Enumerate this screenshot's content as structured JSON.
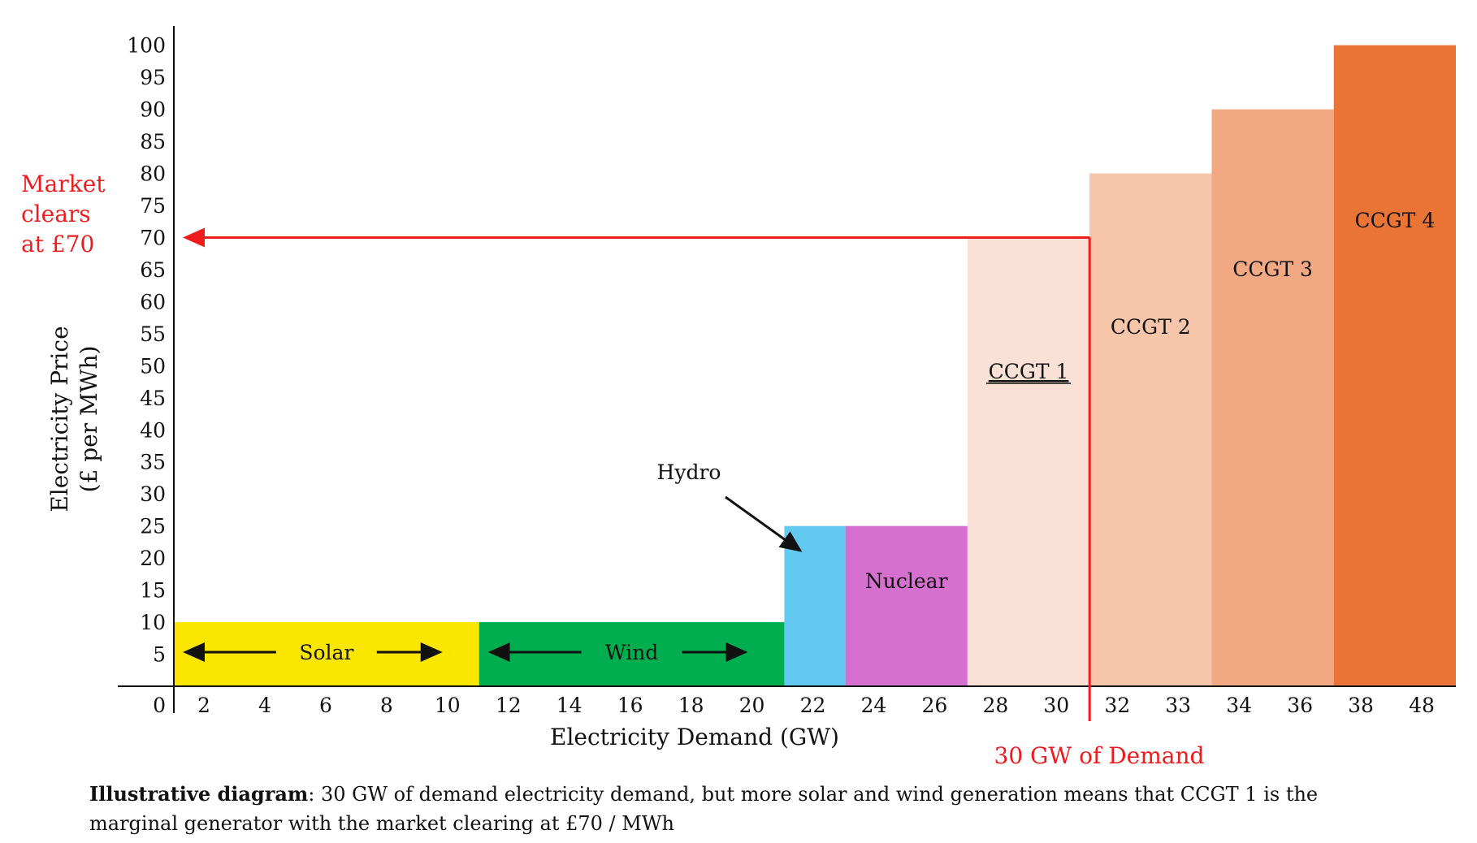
{
  "chart_data": {
    "type": "bar",
    "xlabel": "Electricity Demand (GW)",
    "ylabel_lines": [
      "Electricity Price",
      "(£ per MWh)"
    ],
    "ylim": [
      0,
      103
    ],
    "y_ticks": [
      5,
      10,
      15,
      20,
      25,
      30,
      35,
      40,
      45,
      50,
      55,
      60,
      65,
      70,
      75,
      80,
      85,
      90,
      95,
      100
    ],
    "y_zero_label": "0",
    "x_tick_labels": [
      "2",
      "4",
      "6",
      "8",
      "10",
      "12",
      "14",
      "16",
      "18",
      "20",
      "22",
      "24",
      "26",
      "28",
      "30",
      "32",
      "33",
      "34",
      "36",
      "38",
      "48"
    ],
    "bars": [
      {
        "name": "Solar",
        "start_gw": 0,
        "end_gw": 10,
        "price": 10,
        "color": "#fbe600",
        "label_style": "arrows"
      },
      {
        "name": "Wind",
        "start_gw": 10,
        "end_gw": 20,
        "price": 10,
        "color": "#00ae4f",
        "label_style": "arrows"
      },
      {
        "name": "Hydro",
        "start_gw": 20,
        "end_gw": 22,
        "price": 25,
        "color": "#62c9f1",
        "label_style": "callout"
      },
      {
        "name": "Nuclear",
        "start_gw": 22,
        "end_gw": 26,
        "price": 25,
        "color": "#d670cf",
        "label_style": "inside"
      },
      {
        "name": "CCGT 1",
        "start_gw": 26,
        "end_gw": 30,
        "price": 70,
        "color": "#fae0d5",
        "label_style": "underline"
      },
      {
        "name": "CCGT 2",
        "start_gw": 30,
        "end_gw": 34,
        "price": 80,
        "color": "#f6c5aa",
        "label_style": "inside"
      },
      {
        "name": "CCGT 3",
        "start_gw": 34,
        "end_gw": 38,
        "price": 90,
        "color": "#f2a983",
        "label_style": "inside"
      },
      {
        "name": "CCGT 4",
        "start_gw": 38,
        "end_gw": 42,
        "price": 100,
        "color": "#e97436",
        "label_style": "inside"
      }
    ],
    "market_clear_price": 70,
    "demand_gw": 30,
    "annotation_color": "#ee1c1c",
    "annotations": {
      "market_clears": [
        "Market",
        "clears",
        "at £70"
      ],
      "demand": "30 GW of Demand"
    }
  },
  "caption": {
    "bold": "Illustrative diagram",
    "line1": ": 30 GW of demand electricity demand, but more solar and wind generation means that  CCGT 1 is the",
    "line2": "marginal generator with the market clearing at £70 / MWh"
  }
}
